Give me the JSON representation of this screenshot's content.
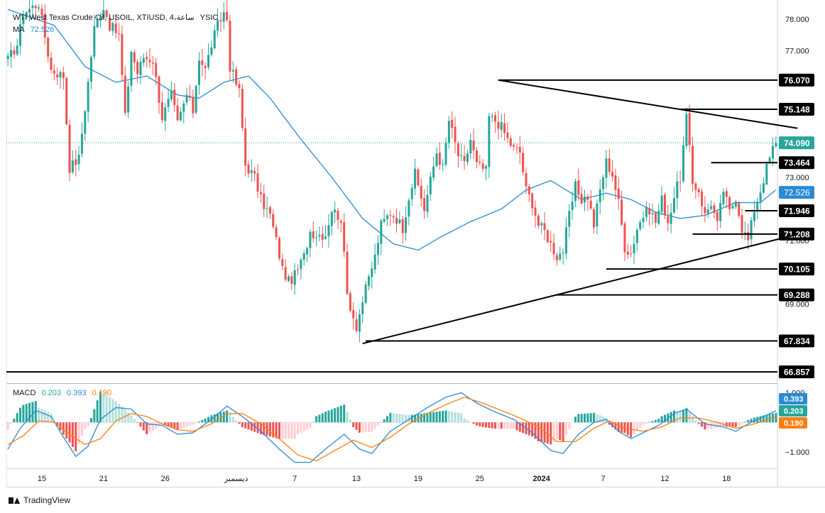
{
  "header": {
    "instrument": "WTI West Texas Crude Oil, USOIL, XTIUSD, 4،ساعة",
    "exchange": "YSIC",
    "ma_label": "MA",
    "ma_value": "72.526"
  },
  "macd_header": {
    "label": "MACD",
    "v1": "0.203",
    "v2": "0.393",
    "v3": "0.190"
  },
  "branding": {
    "text": "TradingView"
  },
  "colors": {
    "up": "#26a69a",
    "down": "#ef5350",
    "ma": "#2a8ad6",
    "signal": "#ff7f0e",
    "current_price": "#26a69a",
    "lines": "#000000"
  },
  "chart_data": {
    "type": "candlestick",
    "ylim": [
      66.5,
      78.6
    ],
    "x_count": 250,
    "price_axis_ticks": [
      "78.000",
      "77.000",
      "73.000",
      "71.000",
      "69.000"
    ],
    "x_ticks": [
      {
        "label": "15",
        "i": 11
      },
      {
        "label": "21",
        "i": 31
      },
      {
        "label": "26",
        "i": 51
      },
      {
        "label": "ديسمبر",
        "i": 74
      },
      {
        "label": "7",
        "i": 93
      },
      {
        "label": "13",
        "i": 113
      },
      {
        "label": "19",
        "i": 133
      },
      {
        "label": "25",
        "i": 153
      },
      {
        "label": "2024",
        "i": 173
      },
      {
        "label": "7",
        "i": 193
      },
      {
        "label": "12",
        "i": 213
      },
      {
        "label": "18",
        "i": 233
      }
    ],
    "anchors": [
      [
        0,
        76.7
      ],
      [
        3,
        77.2
      ],
      [
        5,
        78.2
      ],
      [
        10,
        78.5
      ],
      [
        14,
        76.4
      ],
      [
        18,
        76.2
      ],
      [
        20,
        73.3
      ],
      [
        23,
        73.6
      ],
      [
        26,
        76.0
      ],
      [
        28,
        77.7
      ],
      [
        31,
        78.4
      ],
      [
        33,
        77.8
      ],
      [
        36,
        77.5
      ],
      [
        38,
        74.9
      ],
      [
        40,
        77.0
      ],
      [
        42,
        76.3
      ],
      [
        44,
        76.8
      ],
      [
        47,
        76.7
      ],
      [
        50,
        74.9
      ],
      [
        53,
        75.6
      ],
      [
        55,
        74.7
      ],
      [
        58,
        75.6
      ],
      [
        60,
        75.1
      ],
      [
        62,
        76.8
      ],
      [
        64,
        76.4
      ],
      [
        66,
        77.2
      ],
      [
        68,
        77.8
      ],
      [
        70,
        78.2
      ],
      [
        71,
        78.0
      ],
      [
        72,
        76.5
      ],
      [
        75,
        75.7
      ],
      [
        77,
        73.4
      ],
      [
        80,
        73.0
      ],
      [
        82,
        72.3
      ],
      [
        85,
        71.8
      ],
      [
        87,
        71.0
      ],
      [
        89,
        70.1
      ],
      [
        91,
        69.7
      ],
      [
        93,
        69.9
      ],
      [
        96,
        70.5
      ],
      [
        98,
        71.3
      ],
      [
        100,
        71.2
      ],
      [
        103,
        71.2
      ],
      [
        105,
        72.0
      ],
      [
        108,
        71.7
      ],
      [
        110,
        69.3
      ],
      [
        112,
        68.6
      ],
      [
        113,
        68.3
      ],
      [
        115,
        69.1
      ],
      [
        117,
        69.8
      ],
      [
        119,
        70.5
      ],
      [
        121,
        71.5
      ],
      [
        124,
        71.9
      ],
      [
        126,
        71.7
      ],
      [
        128,
        71.4
      ],
      [
        130,
        72.4
      ],
      [
        132,
        73.1
      ],
      [
        135,
        72.0
      ],
      [
        137,
        72.9
      ],
      [
        139,
        73.8
      ],
      [
        141,
        73.3
      ],
      [
        143,
        74.8
      ],
      [
        146,
        73.7
      ],
      [
        148,
        73.4
      ],
      [
        150,
        74.2
      ],
      [
        152,
        73.4
      ],
      [
        155,
        73.2
      ],
      [
        156,
        74.9
      ],
      [
        158,
        74.8
      ],
      [
        160,
        74.6
      ],
      [
        162,
        74.2
      ],
      [
        164,
        73.9
      ],
      [
        166,
        73.8
      ],
      [
        168,
        72.6
      ],
      [
        170,
        72.2
      ],
      [
        172,
        71.5
      ],
      [
        174,
        71.3
      ],
      [
        176,
        70.9
      ],
      [
        178,
        70.5
      ],
      [
        180,
        70.7
      ],
      [
        182,
        71.8
      ],
      [
        184,
        72.7
      ],
      [
        186,
        72.3
      ],
      [
        188,
        72.4
      ],
      [
        190,
        71.5
      ],
      [
        192,
        72.6
      ],
      [
        194,
        73.5
      ],
      [
        196,
        73.1
      ],
      [
        198,
        72.2
      ],
      [
        200,
        70.8
      ],
      [
        202,
        70.6
      ],
      [
        204,
        71.4
      ],
      [
        206,
        71.8
      ],
      [
        208,
        72.0
      ],
      [
        210,
        71.6
      ],
      [
        212,
        72.3
      ],
      [
        214,
        71.6
      ],
      [
        216,
        72.4
      ],
      [
        218,
        73.0
      ],
      [
        220,
        74.9
      ],
      [
        222,
        72.8
      ],
      [
        224,
        72.6
      ],
      [
        226,
        71.8
      ],
      [
        228,
        72.2
      ],
      [
        230,
        71.5
      ],
      [
        232,
        72.6
      ],
      [
        234,
        71.9
      ],
      [
        236,
        72.4
      ],
      [
        238,
        71.4
      ],
      [
        240,
        71.0
      ],
      [
        242,
        72.0
      ],
      [
        244,
        72.6
      ],
      [
        246,
        73.3
      ],
      [
        248,
        73.9
      ],
      [
        249,
        74.09
      ]
    ],
    "ma_line": [
      [
        0,
        78.3
      ],
      [
        15,
        77.8
      ],
      [
        25,
        76.5
      ],
      [
        35,
        76.0
      ],
      [
        45,
        76.2
      ],
      [
        55,
        75.6
      ],
      [
        62,
        75.5
      ],
      [
        70,
        76.0
      ],
      [
        78,
        76.2
      ],
      [
        85,
        75.5
      ],
      [
        95,
        74.2
      ],
      [
        105,
        73.0
      ],
      [
        115,
        71.7
      ],
      [
        125,
        70.9
      ],
      [
        133,
        70.7
      ],
      [
        140,
        71.1
      ],
      [
        150,
        71.6
      ],
      [
        160,
        72.0
      ],
      [
        168,
        72.6
      ],
      [
        176,
        72.9
      ],
      [
        186,
        72.3
      ],
      [
        194,
        72.5
      ],
      [
        202,
        72.3
      ],
      [
        210,
        71.9
      ],
      [
        218,
        71.7
      ],
      [
        226,
        71.8
      ],
      [
        236,
        72.2
      ],
      [
        244,
        72.2
      ],
      [
        249,
        72.6
      ]
    ],
    "h_levels": [
      {
        "label": "76.070",
        "value": 76.07,
        "from_i": 159
      },
      {
        "label": "75.148",
        "value": 75.148,
        "from_i": 218
      },
      {
        "label": "74.090",
        "value": 74.09,
        "dotted": true,
        "current": true
      },
      {
        "label": "73.464",
        "value": 73.464,
        "from_i": 228
      },
      {
        "label": "71.946",
        "value": 71.946,
        "from_i": 239
      },
      {
        "label": "71.208",
        "value": 71.208,
        "from_i": 222
      },
      {
        "label": "70.105",
        "value": 70.105,
        "from_i": 194
      },
      {
        "label": "69.288",
        "value": 69.288,
        "from_i": 178
      },
      {
        "label": "67.834",
        "value": 67.834,
        "from_i": 116
      },
      {
        "label": "66.857",
        "value": 66.857,
        "from_i": -4
      }
    ],
    "ma_badge": {
      "label": "72.526",
      "value": 72.526
    },
    "trendlines": [
      {
        "name": "upper-trendline",
        "from": [
          159,
          76.07
        ],
        "to": [
          256,
          74.55
        ]
      },
      {
        "name": "lower-trendline",
        "from": [
          115,
          67.75
        ],
        "to": [
          256,
          71.2
        ]
      }
    ],
    "macd": {
      "ylim": [
        -1.55,
        1.3
      ],
      "ticks": [
        "1.000",
        "−1.000"
      ],
      "badges": [
        {
          "label": "0.393",
          "value": 0.393,
          "color": "#2a8ad6"
        },
        {
          "label": "0.203",
          "value": 0.203,
          "color": "#26a69a"
        },
        {
          "label": "0.190",
          "value": 0.19,
          "color": "#ff7f0e"
        }
      ],
      "macd_line": [
        [
          0,
          -0.9
        ],
        [
          4,
          -0.2
        ],
        [
          9,
          0.4
        ],
        [
          14,
          0.2
        ],
        [
          18,
          -0.5
        ],
        [
          22,
          -1.15
        ],
        [
          26,
          -0.8
        ],
        [
          30,
          0.1
        ],
        [
          35,
          0.5
        ],
        [
          40,
          0.45
        ],
        [
          45,
          -0.05
        ],
        [
          50,
          -0.1
        ],
        [
          55,
          -0.4
        ],
        [
          60,
          -0.35
        ],
        [
          66,
          0.1
        ],
        [
          71,
          0.55
        ],
        [
          76,
          0.2
        ],
        [
          82,
          -0.3
        ],
        [
          88,
          -0.9
        ],
        [
          93,
          -1.35
        ],
        [
          98,
          -1.35
        ],
        [
          103,
          -0.9
        ],
        [
          109,
          -0.4
        ],
        [
          114,
          -0.9
        ],
        [
          118,
          -1.05
        ],
        [
          124,
          -0.3
        ],
        [
          130,
          0.1
        ],
        [
          136,
          0.5
        ],
        [
          142,
          0.85
        ],
        [
          147,
          1.0
        ],
        [
          152,
          0.65
        ],
        [
          158,
          0.35
        ],
        [
          164,
          0.1
        ],
        [
          170,
          -0.35
        ],
        [
          176,
          -0.95
        ],
        [
          180,
          -1.05
        ],
        [
          185,
          -0.4
        ],
        [
          190,
          0.0
        ],
        [
          194,
          0.1
        ],
        [
          198,
          -0.3
        ],
        [
          202,
          -0.55
        ],
        [
          206,
          -0.35
        ],
        [
          211,
          -0.1
        ],
        [
          216,
          0.3
        ],
        [
          220,
          0.45
        ],
        [
          226,
          -0.05
        ],
        [
          232,
          -0.15
        ],
        [
          236,
          -0.3
        ],
        [
          240,
          -0.05
        ],
        [
          244,
          0.15
        ],
        [
          249,
          0.39
        ]
      ],
      "signal_line": [
        [
          0,
          -0.75
        ],
        [
          5,
          -0.45
        ],
        [
          10,
          0.05
        ],
        [
          15,
          0.0
        ],
        [
          20,
          -0.4
        ],
        [
          25,
          -0.75
        ],
        [
          30,
          -0.55
        ],
        [
          35,
          0.05
        ],
        [
          40,
          0.3
        ],
        [
          45,
          0.2
        ],
        [
          50,
          -0.05
        ],
        [
          55,
          -0.25
        ],
        [
          60,
          -0.3
        ],
        [
          66,
          -0.05
        ],
        [
          71,
          0.3
        ],
        [
          76,
          0.3
        ],
        [
          82,
          -0.05
        ],
        [
          88,
          -0.55
        ],
        [
          94,
          -1.1
        ],
        [
          100,
          -1.3
        ],
        [
          106,
          -0.95
        ],
        [
          112,
          -0.6
        ],
        [
          118,
          -0.85
        ],
        [
          124,
          -0.5
        ],
        [
          130,
          -0.05
        ],
        [
          136,
          0.3
        ],
        [
          142,
          0.6
        ],
        [
          148,
          0.85
        ],
        [
          154,
          0.65
        ],
        [
          160,
          0.4
        ],
        [
          166,
          0.15
        ],
        [
          172,
          -0.15
        ],
        [
          178,
          -0.65
        ],
        [
          184,
          -0.65
        ],
        [
          190,
          -0.2
        ],
        [
          195,
          0.05
        ],
        [
          200,
          -0.2
        ],
        [
          206,
          -0.3
        ],
        [
          212,
          -0.15
        ],
        [
          218,
          0.15
        ],
        [
          224,
          0.15
        ],
        [
          230,
          0.0
        ],
        [
          236,
          -0.2
        ],
        [
          242,
          -0.05
        ],
        [
          249,
          0.19
        ]
      ]
    }
  }
}
